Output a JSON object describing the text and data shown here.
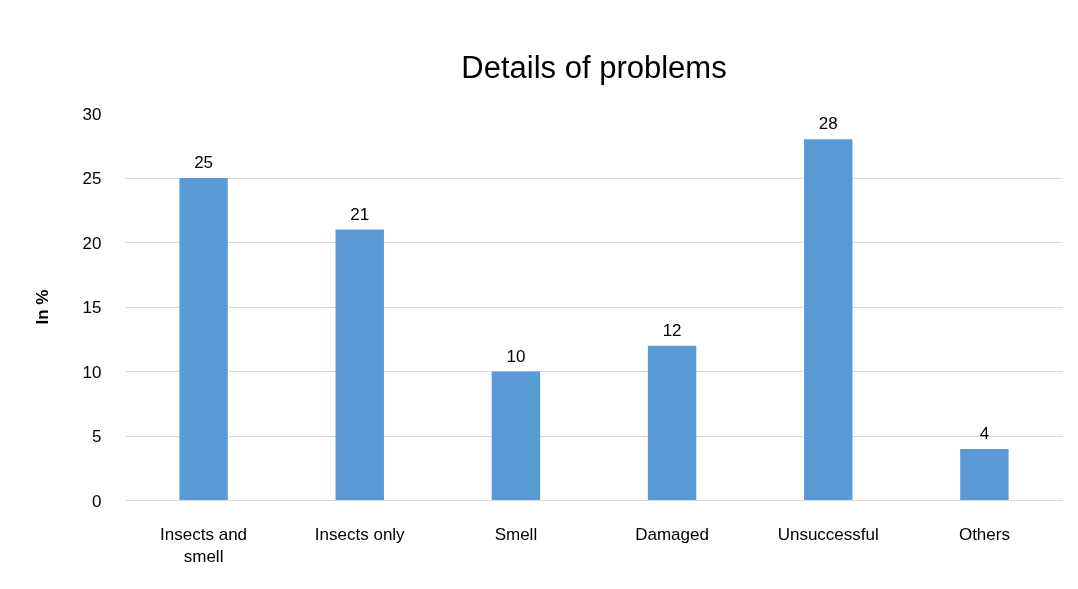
{
  "chart_data": {
    "type": "bar",
    "title": "Details of problems",
    "ylabel": "In %",
    "categories": [
      "Insects and smell",
      "Insects only",
      "Smell",
      "Damaged",
      "Unsuccessful",
      "Others"
    ],
    "values": [
      25,
      21,
      10,
      12,
      28,
      4
    ],
    "color": "#5b9bd5",
    "ylim": [
      0,
      30
    ],
    "yticks": [
      0,
      5,
      10,
      15,
      20,
      25,
      30
    ],
    "grid": "y",
    "data_labels": true
  }
}
